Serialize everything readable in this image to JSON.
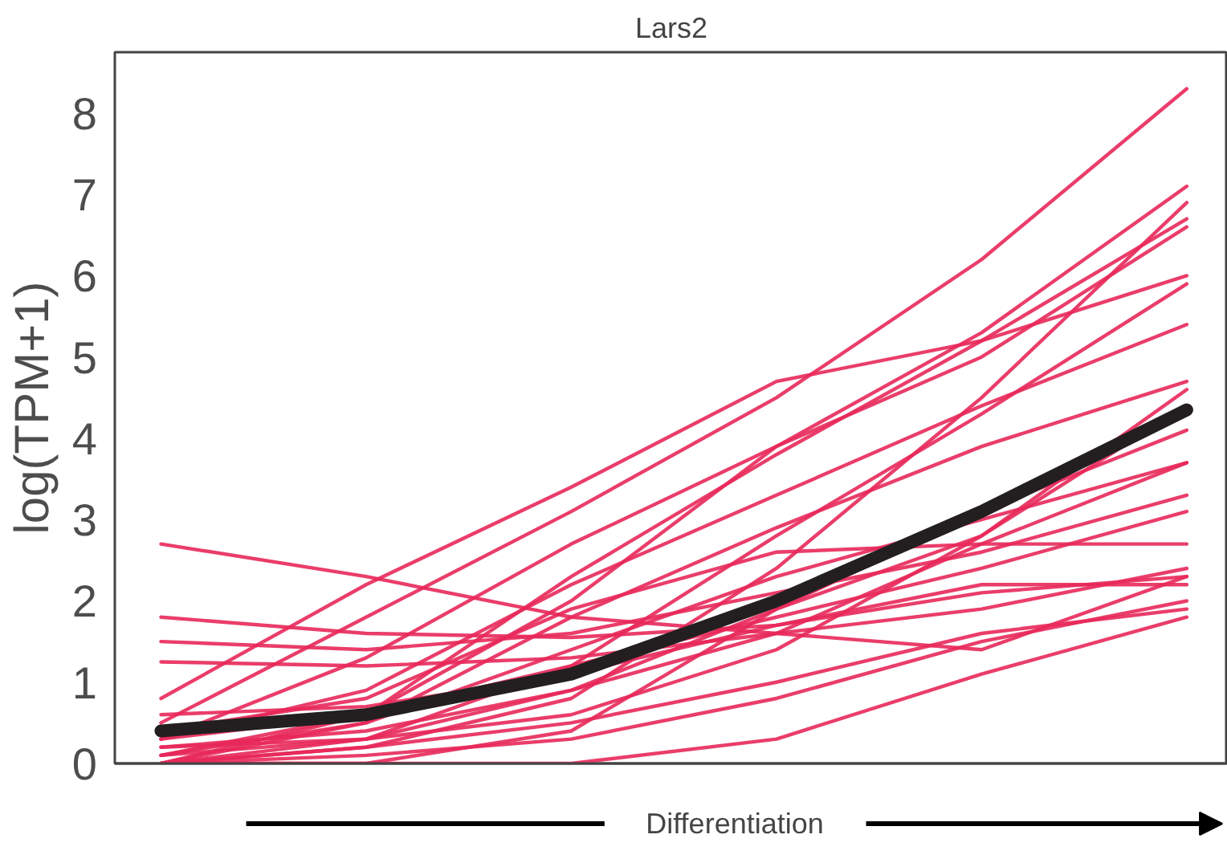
{
  "chart_data": {
    "type": "line",
    "title": "Lars2",
    "xlabel": "Differentiation",
    "ylabel": "log(TPM+1)",
    "categories": [
      null,
      null,
      null,
      null,
      null,
      null
    ],
    "series": [
      {
        "color": "#e8285a",
        "values": [
          0.5,
          1.8,
          3.1,
          4.5,
          6.2,
          8.3
        ]
      },
      {
        "color": "#e8285a",
        "values": [
          0.3,
          1.3,
          2.7,
          3.9,
          5.3,
          7.1
        ]
      },
      {
        "color": "#e8285a",
        "values": [
          2.7,
          2.3,
          1.8,
          1.6,
          1.4,
          2.3
        ]
      },
      {
        "color": "#e8285a",
        "values": [
          1.8,
          1.6,
          1.55,
          1.7,
          2.1,
          2.3
        ]
      },
      {
        "color": "#e8285a",
        "values": [
          0.1,
          0.6,
          2.3,
          3.8,
          5.2,
          6.7
        ]
      },
      {
        "color": "#e8285a",
        "values": [
          0,
          0.2,
          0.8,
          2.4,
          4.5,
          6.9
        ]
      },
      {
        "color": "#e8285a",
        "values": [
          0,
          0.6,
          2.0,
          3.9,
          5.0,
          6.6
        ]
      },
      {
        "color": "#e8285a",
        "values": [
          0.8,
          2.2,
          3.4,
          4.7,
          5.2,
          6.0
        ]
      },
      {
        "color": "#e8285a",
        "values": [
          0,
          0.3,
          1.2,
          2.8,
          4.3,
          5.9
        ]
      },
      {
        "color": "#e8285a",
        "values": [
          0.3,
          0.9,
          2.2,
          3.3,
          4.4,
          5.4
        ]
      },
      {
        "color": "#e8285a",
        "values": [
          0.1,
          0.5,
          1.8,
          2.9,
          3.9,
          4.7
        ]
      },
      {
        "color": "#e8285a",
        "values": [
          1.5,
          1.4,
          1.6,
          2.1,
          2.6,
          3.3
        ]
      },
      {
        "color": "#e8285a",
        "values": [
          1.25,
          1.2,
          1.3,
          1.6,
          1.9,
          2.4
        ]
      },
      {
        "color": "#e8285a",
        "values": [
          0.2,
          0.3,
          0.6,
          1.4,
          2.8,
          4.6
        ]
      },
      {
        "color": "#e8285a",
        "values": [
          0.4,
          0.8,
          1.9,
          2.6,
          2.7,
          2.7
        ]
      },
      {
        "color": "#e8285a",
        "values": [
          0,
          0,
          0.4,
          1.9,
          3.1,
          4.1
        ]
      },
      {
        "color": "#e8285a",
        "values": [
          0.3,
          0.6,
          1.2,
          1.8,
          2.4,
          3.1
        ]
      },
      {
        "color": "#e8285a",
        "values": [
          0,
          0.1,
          0.3,
          0.8,
          1.5,
          2.0
        ]
      },
      {
        "color": "#e8285a",
        "values": [
          0,
          0,
          0,
          0.3,
          1.1,
          1.8
        ]
      },
      {
        "color": "#e8285a",
        "values": [
          0.6,
          0.7,
          1.1,
          1.7,
          2.2,
          2.2
        ]
      },
      {
        "color": "#e8285a",
        "values": [
          0.2,
          0.4,
          0.9,
          1.6,
          2.7,
          3.7
        ]
      },
      {
        "color": "#e8285a",
        "values": [
          0,
          0.2,
          0.5,
          1.0,
          1.6,
          1.9
        ]
      },
      {
        "color": "#e8285a",
        "values": [
          0,
          0.5,
          1.4,
          2.3,
          3.0,
          3.7
        ]
      },
      {
        "color": "#e8285a",
        "values": [
          0.1,
          0.3,
          0.9,
          1.9,
          2.8,
          4.4
        ]
      },
      {
        "color": "#231f20",
        "values": [
          0.4,
          0.6,
          1.1,
          2.0,
          3.1,
          4.35
        ]
      }
    ],
    "ylim": [
      0,
      8.75
    ],
    "yticks": [
      0,
      1,
      2,
      3,
      4,
      5,
      6,
      7,
      8
    ],
    "tick_labels": "y"
  }
}
